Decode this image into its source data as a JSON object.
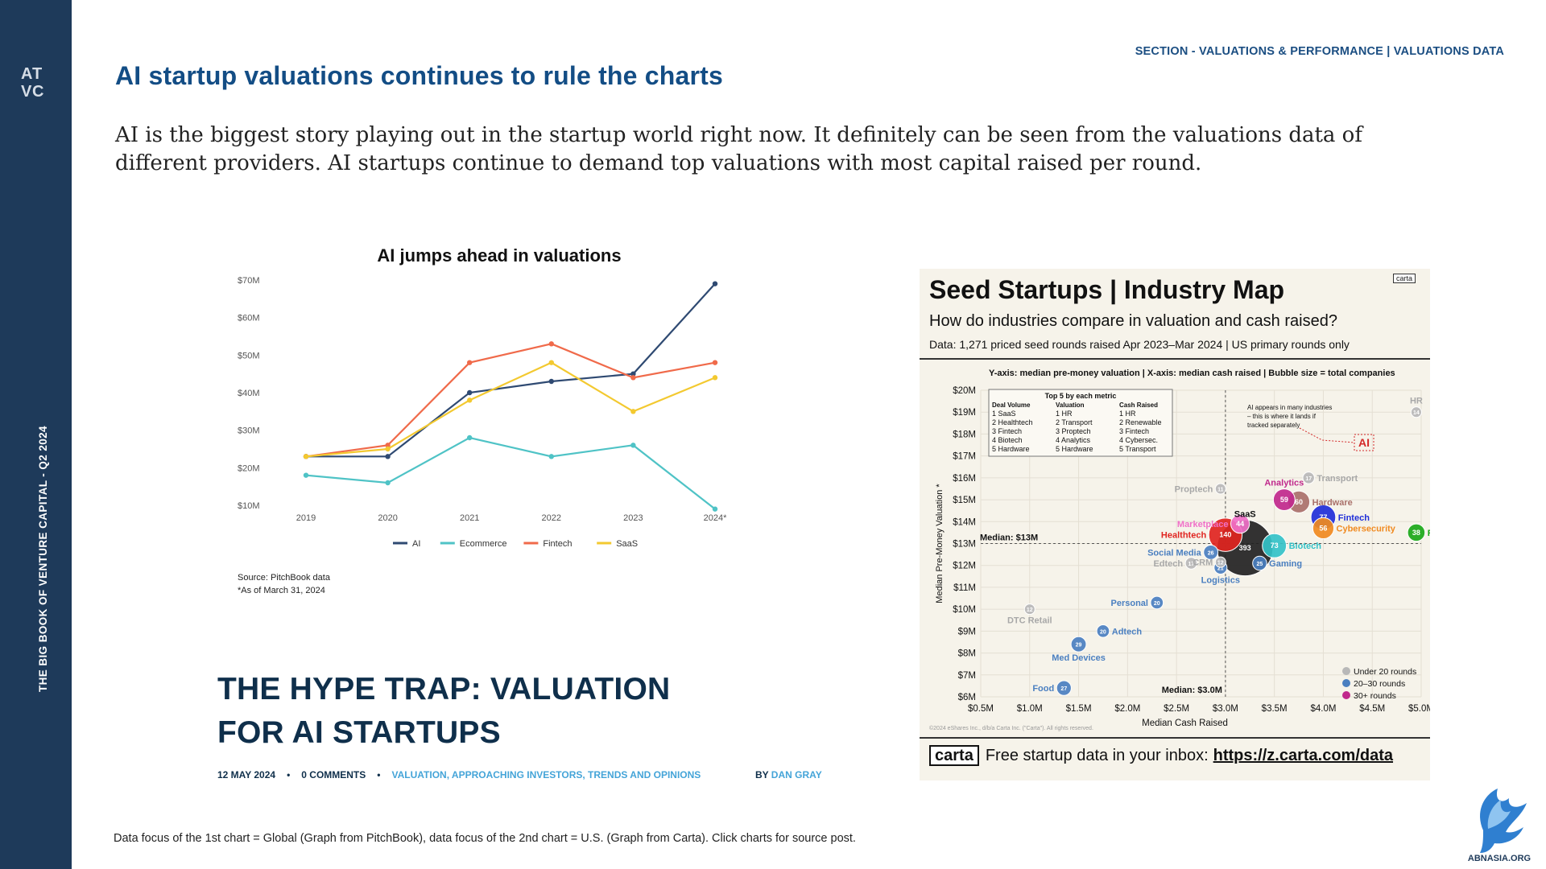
{
  "sidebar": {
    "logo_text": "ATVC",
    "vertical_label": "THE BIG BOOK OF VENTURE CAPITAL - Q2 2024"
  },
  "header": {
    "section_label": "SECTION - VALUATIONS & PERFORMANCE | VALUATIONS DATA",
    "title": "AI startup valuations continues to rule the charts",
    "intro": "AI is the biggest story playing out in the startup world right now. It definitely can be seen from the valuations data of different providers. AI startups continue to demand top valuations with most capital raised per round."
  },
  "chart_data": [
    {
      "type": "line",
      "title": "AI jumps ahead in valuations",
      "categories": [
        "2019",
        "2020",
        "2021",
        "2022",
        "2023",
        "2024*"
      ],
      "y_tick_labels": [
        "$10M",
        "$20M",
        "$30M",
        "$40M",
        "$50M",
        "$60M",
        "$70M"
      ],
      "ylim": [
        10,
        70
      ],
      "legend_position": "bottom",
      "series": [
        {
          "name": "AI",
          "color": "#2f4a72",
          "values": [
            23,
            23,
            40,
            43,
            45,
            69
          ]
        },
        {
          "name": "Ecommerce",
          "color": "#4fc3c6",
          "values": [
            18,
            16,
            28,
            23,
            26,
            9
          ]
        },
        {
          "name": "Fintech",
          "color": "#f06a4a",
          "values": [
            23,
            26,
            48,
            53,
            44,
            48
          ]
        },
        {
          "name": "SaaS",
          "color": "#f3c930",
          "values": [
            23,
            25,
            38,
            48,
            35,
            44
          ]
        }
      ],
      "annotations": [
        "Source: PitchBook data",
        "*As of March 31, 2024"
      ]
    },
    {
      "type": "scatter",
      "title": "Seed Startups | Industry Map",
      "subtitle": "How do industries compare in valuation and cash raised?",
      "data_note": "Data: 1,271 priced seed rounds raised Apr 2023–Mar 2024 | US primary rounds only",
      "brand_label": "carta",
      "axes_note": "Y-axis: median pre-money valuation | X-axis: median cash raised | Bubble size = total companies",
      "xlabel": "Median Cash Raised",
      "ylabel": "Median Pre-Money Valuation *",
      "xlim": [
        0.5,
        5.0
      ],
      "ylim": [
        6,
        20
      ],
      "x_tick_labels": [
        "$0.5M",
        "$1.0M",
        "$1.5M",
        "$2.0M",
        "$2.5M",
        "$3.0M",
        "$3.5M",
        "$4.0M",
        "$4.5M",
        "$5.0M"
      ],
      "y_tick_labels": [
        "$6M",
        "$7M",
        "$8M",
        "$9M",
        "$10M",
        "$11M",
        "$12M",
        "$13M",
        "$14M",
        "$15M",
        "$16M",
        "$17M",
        "$18M",
        "$19M",
        "$20M"
      ],
      "median_y_label": "Median: $13M",
      "median_x_label": "Median: $3.0M",
      "median_x": 3.0,
      "median_y": 13,
      "top5": {
        "title": "Top 5 by each metric",
        "columns": [
          {
            "header": "Deal Volume",
            "items": [
              "1 SaaS",
              "2 Healthtech",
              "3 Fintech",
              "4 Biotech",
              "5 Hardware"
            ]
          },
          {
            "header": "Valuation",
            "items": [
              "1 HR",
              "2 Transport",
              "3 Proptech",
              "4 Analytics",
              "5 Hardware"
            ]
          },
          {
            "header": "Cash Raised",
            "items": [
              "1 HR",
              "2 Renewable",
              "3 Fintech",
              "4 Cybersec.",
              "5 Transport"
            ]
          }
        ]
      },
      "ai_note": [
        "AI appears in many industries",
        "– this is where it lands if",
        "tracked separately"
      ],
      "ai_label": "AI",
      "points": [
        {
          "label": "SaaS",
          "count": 393,
          "x": 3.2,
          "y": 12.8,
          "color": "#222222"
        },
        {
          "label": "Healthtech",
          "count": 140,
          "x": 3.0,
          "y": 13.4,
          "color": "#e02420"
        },
        {
          "label": "Fintech",
          "count": 77,
          "x": 4.0,
          "y": 14.2,
          "color": "#1f2ed8"
        },
        {
          "label": "Biotech",
          "count": 73,
          "x": 3.5,
          "y": 12.9,
          "color": "#33c2c8"
        },
        {
          "label": "Hardware",
          "count": 60,
          "x": 3.75,
          "y": 14.9,
          "color": "#a9706a"
        },
        {
          "label": "Analytics",
          "count": 59,
          "x": 3.6,
          "y": 15.0,
          "color": "#c0288c"
        },
        {
          "label": "Cybersecurity",
          "count": 56,
          "x": 4.0,
          "y": 13.7,
          "color": "#f08a20"
        },
        {
          "label": "Marketplace",
          "count": 44,
          "x": 3.15,
          "y": 13.9,
          "color": "#f070c8"
        },
        {
          "label": "Renewables",
          "count": 38,
          "x": 4.95,
          "y": 13.5,
          "color": "#1aa818"
        },
        {
          "label": "Social Media",
          "count": 26,
          "x": 2.85,
          "y": 12.6,
          "color": "#4a7fc0"
        },
        {
          "label": "Gaming",
          "count": 25,
          "x": 3.35,
          "y": 12.1,
          "color": "#4a7fc0"
        },
        {
          "label": "Personal",
          "count": 20,
          "x": 2.3,
          "y": 10.3,
          "color": "#4a7fc0"
        },
        {
          "label": "Adtech",
          "count": 20,
          "x": 1.75,
          "y": 9.0,
          "color": "#4a7fc0"
        },
        {
          "label": "Med Devices",
          "count": 29,
          "x": 1.5,
          "y": 8.4,
          "color": "#4a7fc0"
        },
        {
          "label": "Food",
          "count": 27,
          "x": 1.35,
          "y": 6.4,
          "color": "#4a7fc0"
        },
        {
          "label": "Logistics",
          "count": 21,
          "x": 2.95,
          "y": 11.9,
          "color": "#4a7fc0"
        },
        {
          "label": "Edtech",
          "count": 17,
          "x": 2.65,
          "y": 12.1,
          "color": "#b8b8b8"
        },
        {
          "label": "CRM",
          "count": 12,
          "x": 2.95,
          "y": 12.15,
          "color": "#b8b8b8"
        },
        {
          "label": "Proptech",
          "count": 11,
          "x": 2.95,
          "y": 15.5,
          "color": "#b8b8b8"
        },
        {
          "label": "Transport",
          "count": 17,
          "x": 3.85,
          "y": 16.0,
          "color": "#b8b8b8"
        },
        {
          "label": "DTC Retail",
          "count": 12,
          "x": 1.0,
          "y": 10.0,
          "color": "#b8b8b8"
        },
        {
          "label": "HR",
          "count": 14,
          "x": 4.95,
          "y": 19.0,
          "color": "#b8b8b8"
        }
      ],
      "legend": [
        {
          "label": "Under 20 rounds",
          "color": "#b8b8b8"
        },
        {
          "label": "20–30 rounds",
          "color": "#4a7fc0"
        },
        {
          "label": "30+ rounds",
          "color": "#c0288c"
        }
      ],
      "copyright": "©2024 eShares Inc., d/b/a Carta Inc. (\"Carta\"). All rights reserved.",
      "cta_box": "carta",
      "cta_text": "Free startup data in your inbox:",
      "cta_url": "https://z.carta.com/data"
    }
  ],
  "article": {
    "headline_line1": "THE HYPE TRAP: VALUATION",
    "headline_line2": "FOR AI STARTUPS",
    "date": "12 MAY 2024",
    "comments": "0 COMMENTS",
    "tags": "VALUATION, APPROACHING INVESTORS, TRENDS AND OPINIONS",
    "byline_prefix": "BY",
    "author": "DAN GRAY"
  },
  "footer": {
    "note": "Data focus of the 1st chart = Global (Graph from PitchBook), data focus of the 2nd chart = U.S. (Graph from Carta). Click charts for source post.",
    "mascot_text": "ABNASIA.ORG"
  },
  "colors": {
    "sidebar": "#1e3a5a",
    "title": "#134d85",
    "accent_link": "#44a4d8"
  }
}
